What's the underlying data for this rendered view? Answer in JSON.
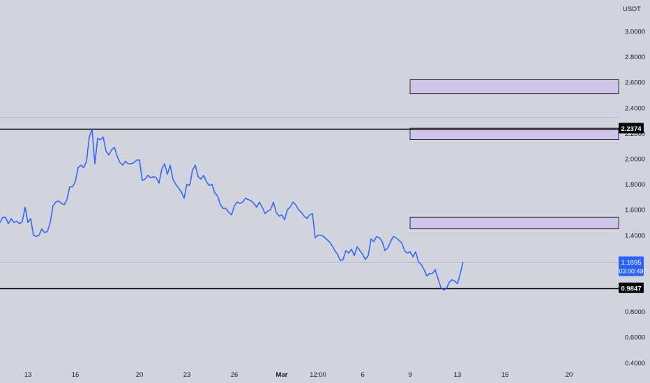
{
  "chart_data": {
    "type": "line",
    "y_unit": "USDT",
    "y_ticks": [
      "3.0000",
      "2.8000",
      "2.6000",
      "2.4000",
      "2.2000",
      "2.0000",
      "1.8000",
      "1.6000",
      "1.4000",
      "0.8000",
      "0.6000",
      "0.4000"
    ],
    "y_tick_values": [
      3.0,
      2.8,
      2.6,
      2.4,
      2.2,
      2.0,
      1.8,
      1.6,
      1.4,
      0.8,
      0.6,
      0.4
    ],
    "x_ticks": [
      "13",
      "16",
      "20",
      "23",
      "26",
      "Mar",
      "12:00",
      "6",
      "9",
      "13",
      "16",
      "20"
    ],
    "x_tick_index": [
      10,
      27,
      50,
      67,
      84,
      101,
      114,
      130,
      147,
      164,
      181,
      204
    ],
    "ylim": [
      0.4,
      3.1
    ],
    "grid": false,
    "series": [
      {
        "color": "#2962ff",
        "values": [
          1.5,
          1.54,
          1.54,
          1.49,
          1.53,
          1.5,
          1.51,
          1.49,
          1.51,
          1.62,
          1.5,
          1.53,
          1.4,
          1.39,
          1.4,
          1.45,
          1.42,
          1.43,
          1.5,
          1.63,
          1.66,
          1.67,
          1.65,
          1.64,
          1.68,
          1.78,
          1.78,
          1.82,
          1.93,
          1.95,
          1.93,
          1.98,
          2.17,
          2.23,
          1.96,
          2.16,
          2.15,
          2.17,
          2.06,
          2.03,
          2.07,
          2.09,
          2.02,
          1.97,
          1.95,
          1.98,
          1.96,
          1.96,
          1.97,
          1.99,
          1.99,
          1.83,
          1.84,
          1.87,
          1.85,
          1.86,
          1.85,
          1.81,
          1.92,
          1.96,
          1.88,
          1.95,
          1.84,
          1.8,
          1.77,
          1.74,
          1.69,
          1.8,
          1.79,
          1.91,
          1.95,
          1.86,
          1.84,
          1.87,
          1.82,
          1.79,
          1.8,
          1.73,
          1.71,
          1.64,
          1.61,
          1.61,
          1.58,
          1.56,
          1.63,
          1.66,
          1.65,
          1.66,
          1.69,
          1.68,
          1.67,
          1.65,
          1.62,
          1.66,
          1.62,
          1.57,
          1.59,
          1.6,
          1.66,
          1.58,
          1.55,
          1.56,
          1.52,
          1.6,
          1.62,
          1.66,
          1.64,
          1.6,
          1.58,
          1.55,
          1.53,
          1.56,
          1.57,
          1.38,
          1.4,
          1.4,
          1.39,
          1.37,
          1.35,
          1.32,
          1.28,
          1.25,
          1.2,
          1.21,
          1.28,
          1.26,
          1.29,
          1.24,
          1.31,
          1.28,
          1.25,
          1.21,
          1.24,
          1.37,
          1.35,
          1.39,
          1.38,
          1.35,
          1.28,
          1.3,
          1.35,
          1.39,
          1.38,
          1.36,
          1.34,
          1.28,
          1.26,
          1.27,
          1.23,
          1.27,
          1.19,
          1.17,
          1.13,
          1.08,
          1.1,
          1.1,
          1.13,
          1.06,
          0.99,
          0.97,
          0.98,
          1.03,
          1.05,
          1.04,
          1.02,
          1.1,
          1.19
        ]
      }
    ],
    "price_label": {
      "value": 1.1895,
      "text": "1.1895",
      "countdown": "03:00:49",
      "color": "#2962ff"
    },
    "horizontal_lines": [
      {
        "value": 2.2374,
        "label": "2.2374",
        "color": "#000000"
      },
      {
        "value": 0.9847,
        "label": "0.9847",
        "color": "#000000"
      },
      {
        "value": 2.33,
        "color": "#b6b2c6"
      }
    ],
    "zones": [
      {
        "from_index": 147,
        "y_low": 2.51,
        "y_high": 2.62,
        "color": "#d1c4e9"
      },
      {
        "from_index": 147,
        "y_low": 2.15,
        "y_high": 2.24,
        "color": "#d1c4e9"
      },
      {
        "from_index": 147,
        "y_low": 1.45,
        "y_high": 1.54,
        "color": "#d1c4e9"
      }
    ]
  }
}
